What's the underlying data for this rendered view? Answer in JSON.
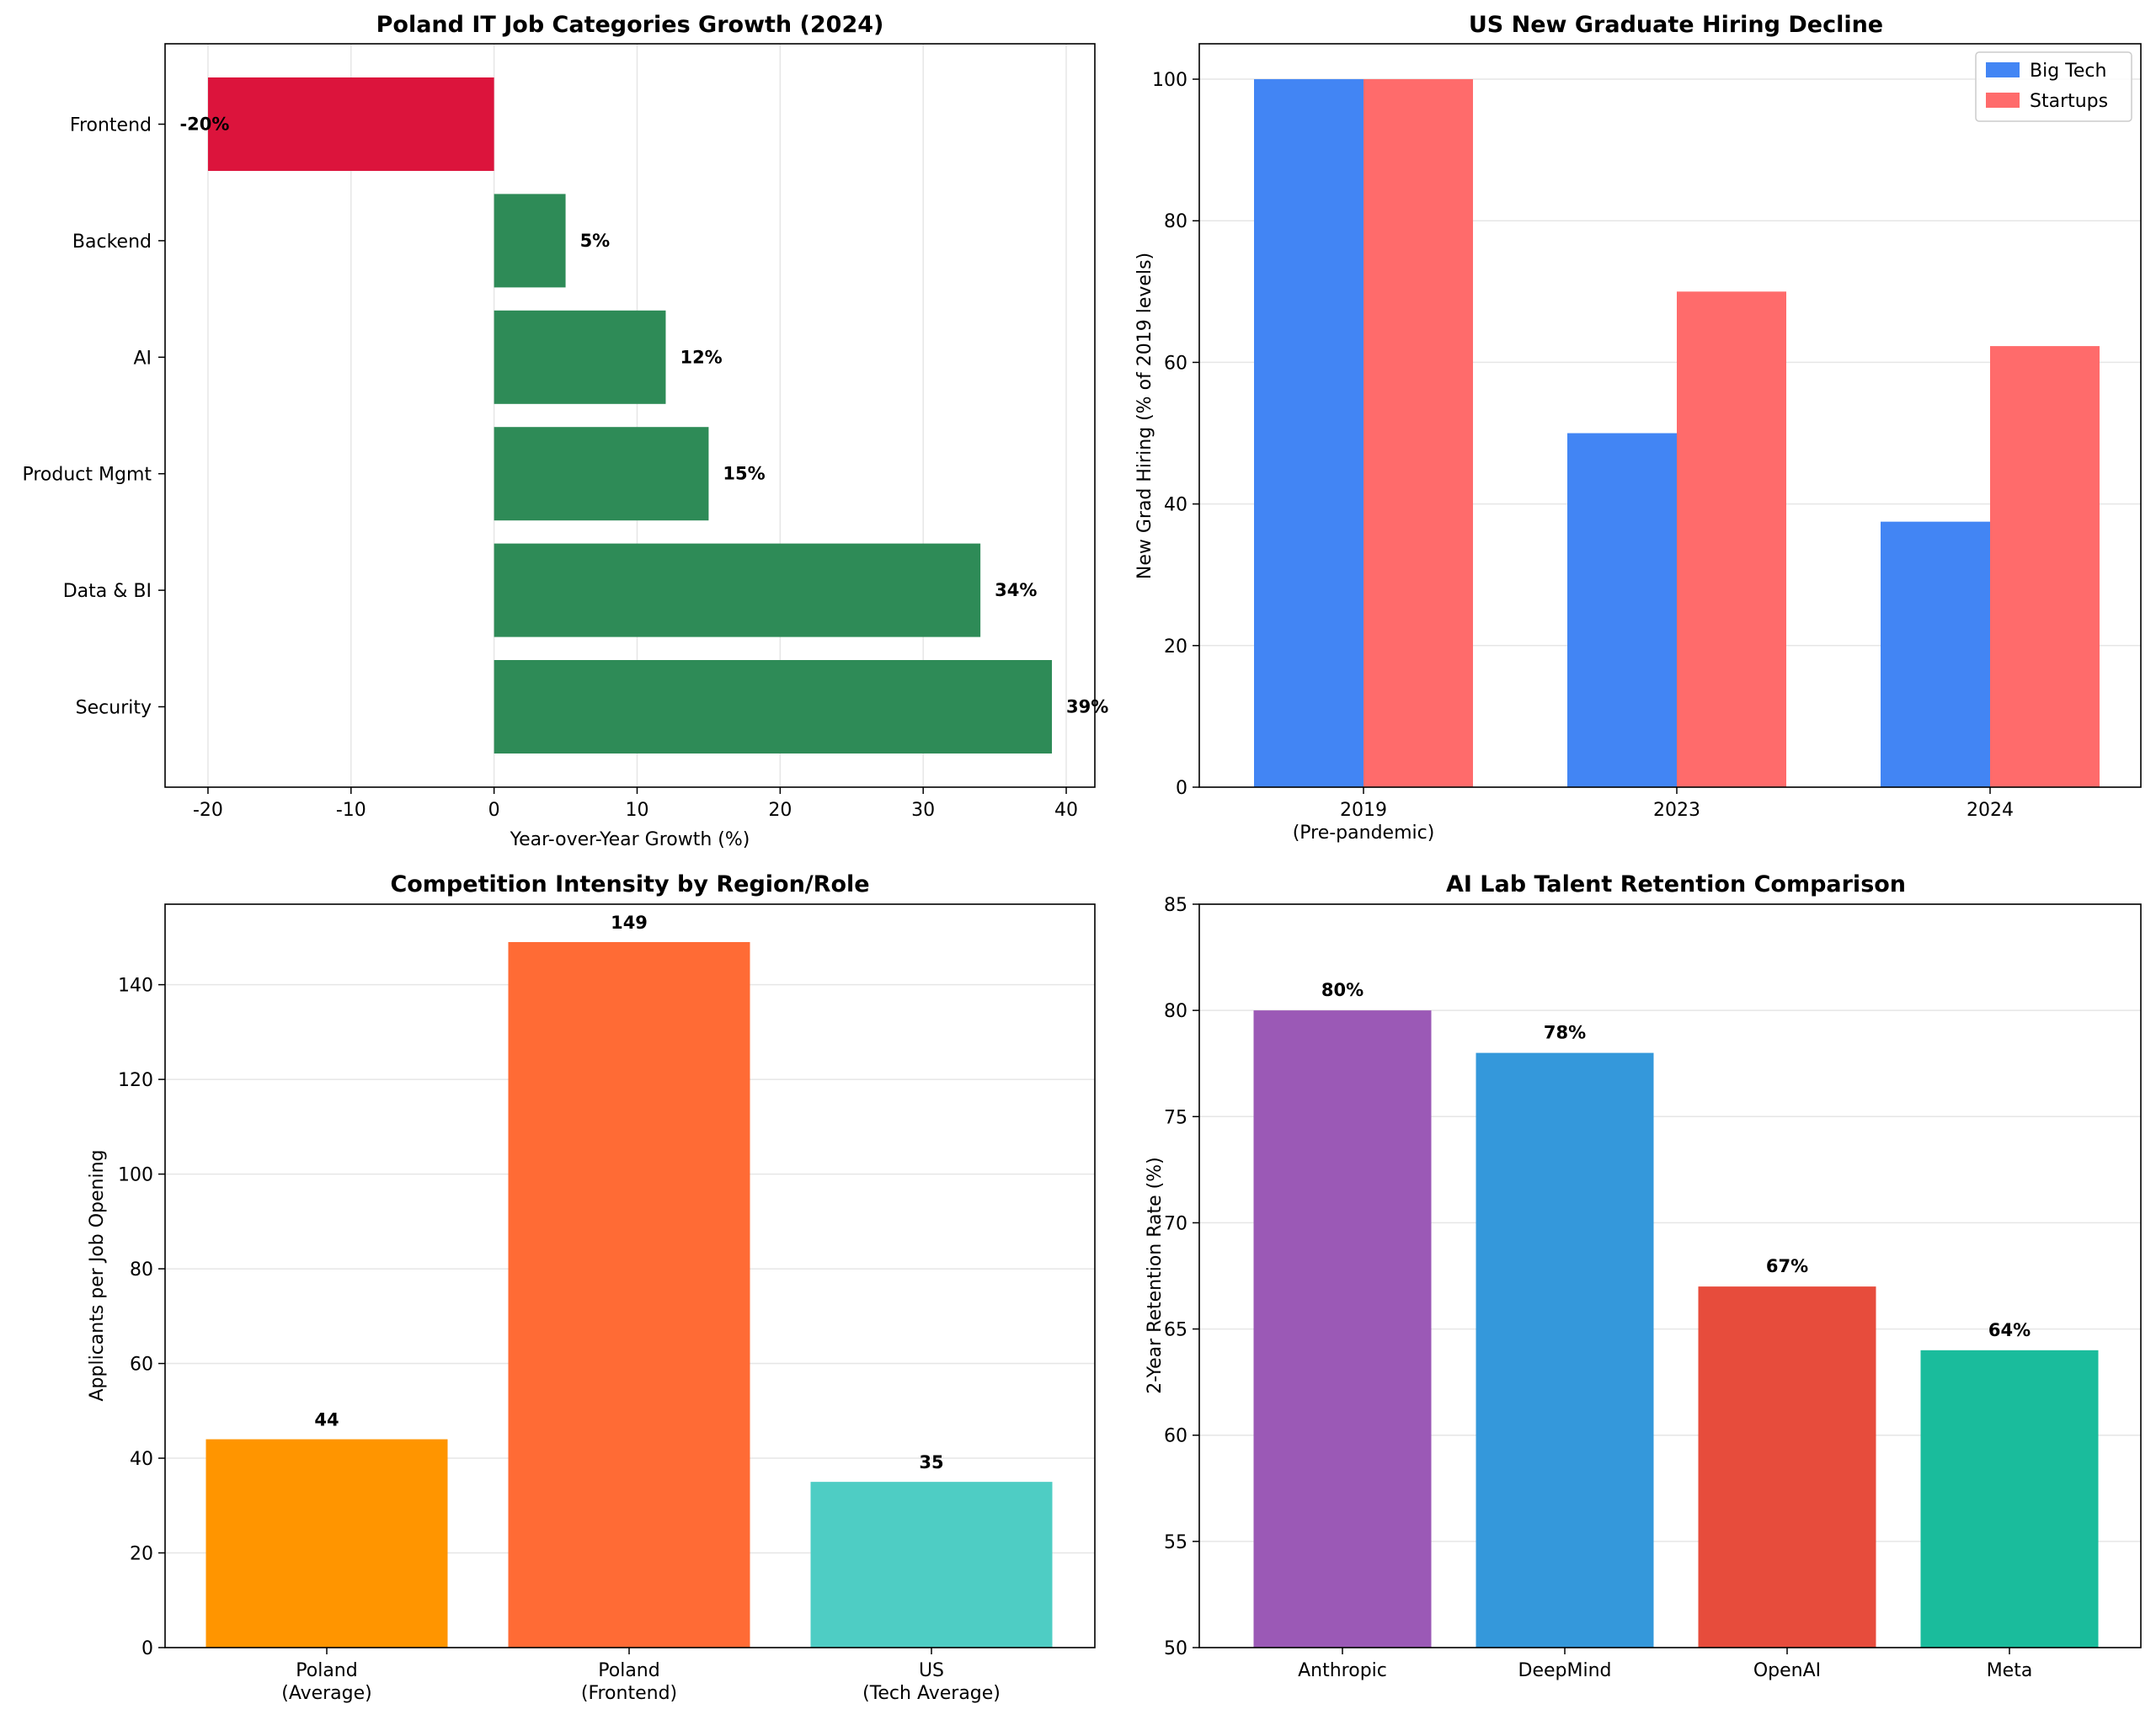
{
  "colors": {
    "positive": "#2E8B57",
    "negative": "#DC143C",
    "bigtech": "#4285F4",
    "startups": "#FF6B6B",
    "poland_avg": "#FF9500",
    "poland_frontend": "#FF6B35",
    "us_avg": "#4ECDC4",
    "anthropic": "#9B59B6",
    "deepmind": "#3498DB",
    "openai": "#E74C3C",
    "meta": "#1ABC9C",
    "grid": "#e6e6e6"
  },
  "chart_data": [
    {
      "id": "poland-growth",
      "type": "bar",
      "orientation": "horizontal",
      "title": "Poland IT Job Categories Growth (2024)",
      "xlabel": "Year-over-Year Growth (%)",
      "ylabel": "",
      "categories": [
        "Frontend",
        "Backend",
        "AI",
        "Product Mgmt",
        "Data & BI",
        "Security"
      ],
      "values": [
        -20,
        5,
        12,
        15,
        34,
        39
      ],
      "value_labels": [
        "-20%",
        "5%",
        "12%",
        "15%",
        "34%",
        "39%"
      ],
      "xlim": [
        -23,
        42
      ],
      "xticks": [
        -20,
        -10,
        0,
        10,
        20,
        30,
        40
      ],
      "xtick_labels": [
        "-20",
        "-10",
        "0",
        "10",
        "20",
        "30",
        "40"
      ],
      "grid": "x"
    },
    {
      "id": "us-newgrad",
      "type": "bar",
      "title": "US New Graduate Hiring Decline",
      "xlabel": "",
      "ylabel": "New Grad Hiring (% of 2019 levels)",
      "categories": [
        "2019\n(Pre-pandemic)",
        "2023",
        "2024"
      ],
      "series": [
        {
          "name": "Big Tech",
          "values": [
            100,
            50,
            37.5
          ]
        },
        {
          "name": "Startups",
          "values": [
            100,
            70,
            62.3
          ]
        }
      ],
      "ylim": [
        0,
        105
      ],
      "yticks": [
        0,
        20,
        40,
        60,
        80,
        100
      ],
      "ytick_labels": [
        "0",
        "20",
        "40",
        "60",
        "80",
        "100"
      ],
      "legend": "top-right",
      "grid": "y"
    },
    {
      "id": "competition",
      "type": "bar",
      "title": "Competition Intensity by Region/Role",
      "xlabel": "",
      "ylabel": "Applicants per Job Opening",
      "categories": [
        "Poland\n(Average)",
        "Poland\n(Frontend)",
        "US\n(Tech Average)"
      ],
      "values": [
        44,
        149,
        35
      ],
      "value_labels": [
        "44",
        "149",
        "35"
      ],
      "ylim": [
        0,
        157
      ],
      "yticks": [
        0,
        20,
        40,
        60,
        80,
        100,
        120,
        140
      ],
      "ytick_labels": [
        "0",
        "20",
        "40",
        "60",
        "80",
        "100",
        "120",
        "140"
      ],
      "grid": "y"
    },
    {
      "id": "retention",
      "type": "bar",
      "title": "AI Lab Talent Retention Comparison",
      "xlabel": "",
      "ylabel": "2-Year Retention Rate (%)",
      "categories": [
        "Anthropic",
        "DeepMind",
        "OpenAI",
        "Meta"
      ],
      "values": [
        80,
        78,
        67,
        64
      ],
      "value_labels": [
        "80%",
        "78%",
        "67%",
        "64%"
      ],
      "ylim": [
        50,
        85
      ],
      "yticks": [
        50,
        55,
        60,
        65,
        70,
        75,
        80,
        85
      ],
      "ytick_labels": [
        "50",
        "55",
        "60",
        "65",
        "70",
        "75",
        "80",
        "85"
      ],
      "grid": "y"
    }
  ]
}
